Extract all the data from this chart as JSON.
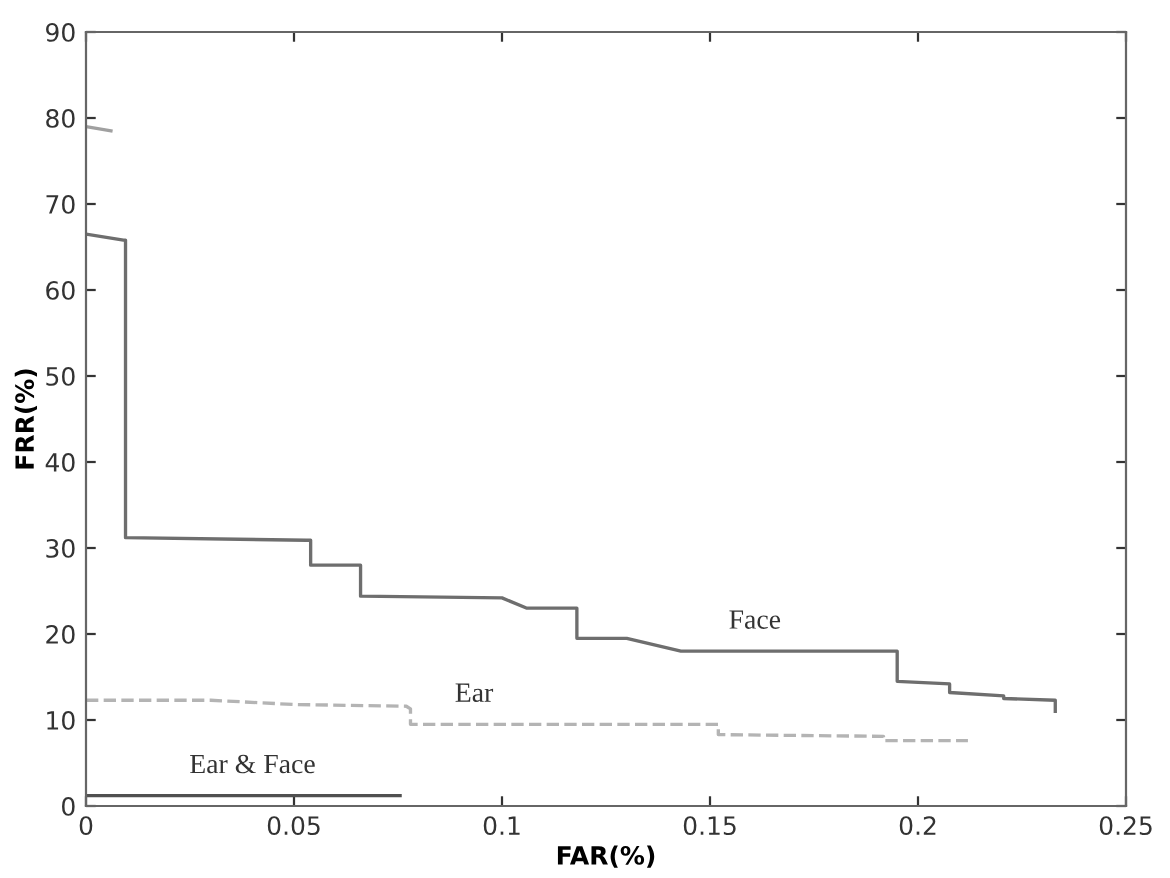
{
  "chart_data": {
    "type": "line",
    "xlabel": "FAR(%)",
    "ylabel": "FRR(%)",
    "xlim": [
      0,
      0.25
    ],
    "ylim": [
      0,
      90
    ],
    "xticks": [
      0,
      0.05,
      0.1,
      0.15,
      0.2,
      0.25
    ],
    "yticks": [
      0,
      10,
      20,
      30,
      40,
      50,
      60,
      70,
      80,
      90
    ],
    "grid": false,
    "legend": false,
    "series": [
      {
        "name": "Face",
        "color": "#6e6e6e",
        "line_style": "solid",
        "x": [
          0,
          0.009,
          0.0095,
          0.0095,
          0.053,
          0.054,
          0.054,
          0.066,
          0.066,
          0.1,
          0.106,
          0.118,
          0.118,
          0.13,
          0.143,
          0.195,
          0.195,
          0.2076,
          0.2076,
          0.2206,
          0.2206,
          0.233,
          0.233
        ],
        "values": [
          66.5,
          65.8,
          65.8,
          31.2,
          30.9,
          30.9,
          28,
          28,
          24.4,
          24.2,
          23,
          23,
          19.5,
          19.5,
          18,
          18,
          14.5,
          14.2,
          13.2,
          12.8,
          12.5,
          12.3,
          11
        ]
      },
      {
        "name": "Ear",
        "color": "#b4b4b4",
        "line_style": "dashed",
        "x": [
          0,
          0.03,
          0.05,
          0.077,
          0.078,
          0.078,
          0.152,
          0.152,
          0.1917,
          0.1917,
          0.212
        ],
        "values": [
          12.3,
          12.3,
          11.8,
          11.6,
          11.3,
          9.5,
          9.5,
          8.3,
          8.1,
          7.6,
          7.6
        ]
      },
      {
        "name": "Ear & Face",
        "color": "#505050",
        "line_style": "solid",
        "x": [
          0,
          0.0755
        ],
        "values": [
          1.2,
          1.2
        ]
      },
      {
        "color": "#a0a0a0",
        "line_style": "solid",
        "x": [
          0,
          0.006
        ],
        "values": [
          79,
          78.5
        ]
      }
    ]
  }
}
